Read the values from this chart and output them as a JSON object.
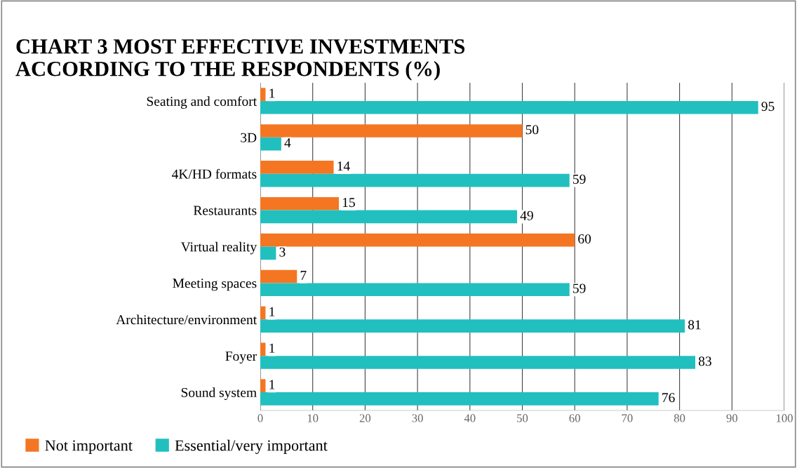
{
  "chart_data": {
    "type": "bar",
    "orientation": "horizontal",
    "title": "CHART 3 MOST EFFECTIVE INVESTMENTS\nACCORDING TO THE RESPONDENTS (%)",
    "categories": [
      "Seating and comfort",
      "3D",
      "4K/HD formats",
      "Restaurants",
      "Virtual reality",
      "Meeting spaces",
      "Architecture/environment",
      "Foyer",
      "Sound system"
    ],
    "series": [
      {
        "name": "Not important",
        "color": "#f47622",
        "values": [
          1,
          50,
          14,
          15,
          60,
          7,
          1,
          1,
          1
        ]
      },
      {
        "name": "Essential/very important",
        "color": "#22bfbf",
        "values": [
          95,
          4,
          59,
          49,
          3,
          59,
          81,
          83,
          76
        ]
      }
    ],
    "xlim": [
      0,
      100
    ],
    "xticks": [
      0,
      10,
      20,
      30,
      40,
      50,
      60,
      70,
      80,
      90,
      100
    ],
    "grid": "x",
    "legend": "bottom left",
    "data_labels": true
  }
}
